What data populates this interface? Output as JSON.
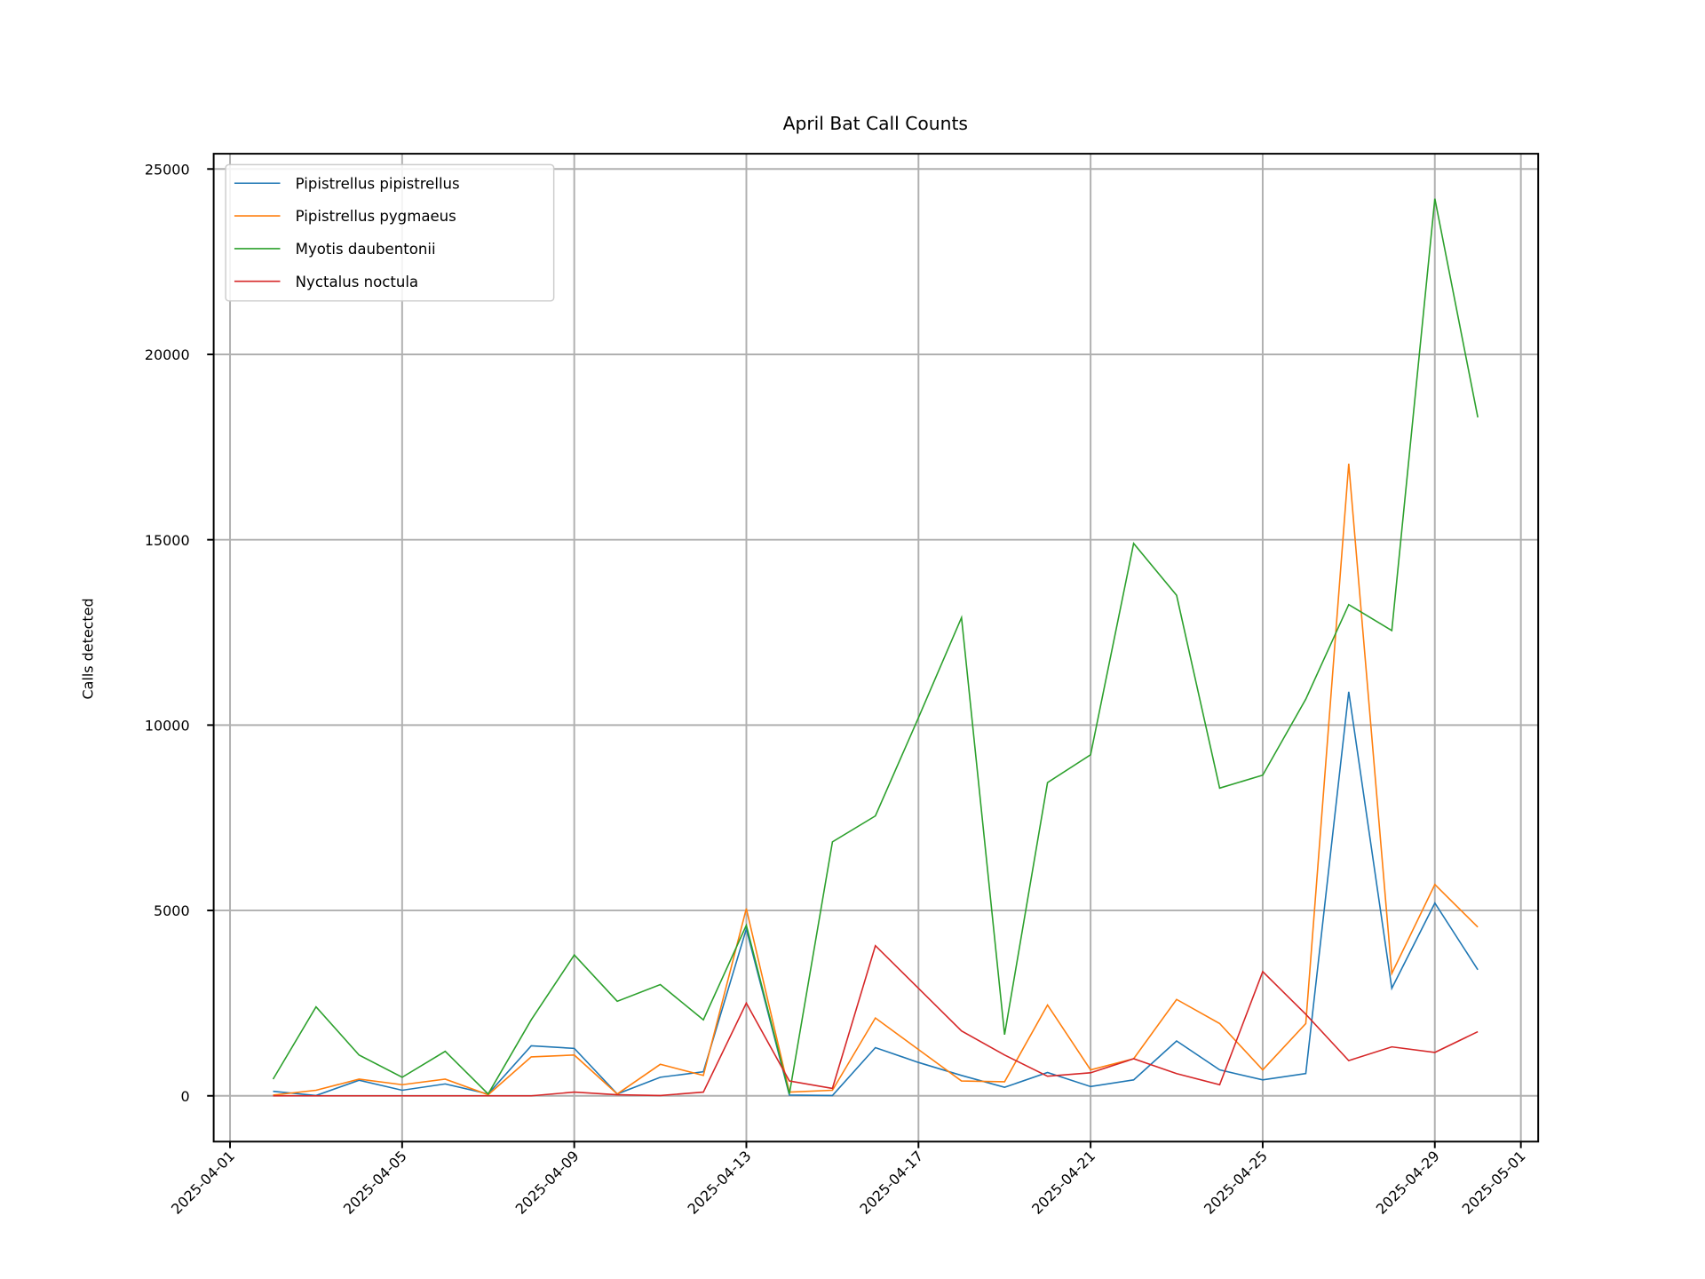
{
  "chart_data": {
    "type": "line",
    "title": "April Bat Call Counts",
    "xlabel": "",
    "ylabel": "Calls detected",
    "x": [
      "2025-04-02",
      "2025-04-03",
      "2025-04-04",
      "2025-04-05",
      "2025-04-06",
      "2025-04-07",
      "2025-04-08",
      "2025-04-09",
      "2025-04-10",
      "2025-04-11",
      "2025-04-12",
      "2025-04-13",
      "2025-04-14",
      "2025-04-15",
      "2025-04-16",
      "2025-04-17",
      "2025-04-18",
      "2025-04-19",
      "2025-04-20",
      "2025-04-21",
      "2025-04-22",
      "2025-04-23",
      "2025-04-24",
      "2025-04-25",
      "2025-04-26",
      "2025-04-27",
      "2025-04-28",
      "2025-04-29",
      "2025-04-30"
    ],
    "xlim": [
      "2025-03-31T15:00",
      "2025-05-01T09:00"
    ],
    "ylim": [
      -1200,
      25400
    ],
    "xticks": [
      "2025-04-01",
      "2025-04-05",
      "2025-04-09",
      "2025-04-13",
      "2025-04-17",
      "2025-04-21",
      "2025-04-25",
      "2025-04-29",
      "2025-05-01"
    ],
    "yticks": [
      0,
      5000,
      10000,
      15000,
      20000,
      25000
    ],
    "grid": true,
    "legend_position": "top-left",
    "series": [
      {
        "name": "Pipistrellus pipistrellus",
        "color": "#1f77b4",
        "values": [
          120,
          10,
          420,
          150,
          320,
          50,
          1350,
          1280,
          50,
          500,
          650,
          4500,
          20,
          10,
          1300,
          900,
          550,
          230,
          630,
          250,
          430,
          1480,
          700,
          430,
          600,
          10900,
          2900,
          5200,
          3400
        ]
      },
      {
        "name": "Pipistrellus pygmaeus",
        "color": "#ff7f0e",
        "values": [
          20,
          150,
          450,
          300,
          450,
          30,
          1050,
          1100,
          50,
          850,
          550,
          5050,
          100,
          150,
          2100,
          1250,
          400,
          380,
          2450,
          700,
          1000,
          2600,
          1950,
          700,
          1950,
          17050,
          3300,
          5700,
          4550
        ]
      },
      {
        "name": "Myotis daubentonii",
        "color": "#2ca02c",
        "values": [
          450,
          2400,
          1100,
          500,
          1200,
          50,
          2050,
          3800,
          2550,
          3000,
          2050,
          4600,
          50,
          6850,
          7550,
          10200,
          12900,
          1650,
          8450,
          9200,
          14900,
          13500,
          8300,
          8650,
          10700,
          13250,
          12550,
          24200,
          18300
        ]
      },
      {
        "name": "Nyctalus noctula",
        "color": "#d62728",
        "values": [
          0,
          0,
          0,
          0,
          0,
          0,
          0,
          100,
          30,
          10,
          100,
          2500,
          400,
          200,
          4050,
          2900,
          1750,
          1100,
          530,
          620,
          1000,
          600,
          300,
          3350,
          2200,
          950,
          1320,
          1170,
          1730
        ]
      }
    ]
  }
}
